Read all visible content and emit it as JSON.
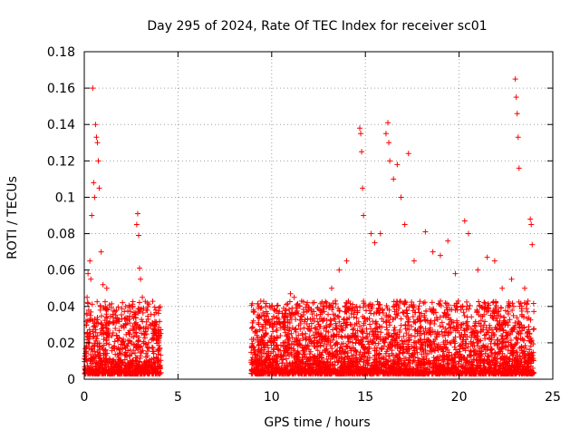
{
  "chart_data": {
    "type": "scatter",
    "title": "Day 295 of 2024, Rate Of TEC Index for receiver sc01",
    "xlabel": "GPS time / hours",
    "ylabel": "ROTI / TECUs",
    "xlim": [
      0,
      25
    ],
    "ylim": [
      0,
      0.18
    ],
    "x_ticks": [
      0,
      5,
      10,
      15,
      20,
      25
    ],
    "y_ticks": [
      0,
      0.02,
      0.04,
      0.06,
      0.08,
      0.1,
      0.12,
      0.14,
      0.16,
      0.18
    ],
    "x_tick_labels": [
      "0",
      "5",
      "10",
      "15",
      "20",
      "25"
    ],
    "y_tick_labels": [
      "0",
      "0.02",
      "0.04",
      "0.06",
      "0.08",
      "0.1",
      "0.12",
      "0.14",
      "0.16",
      "0.18"
    ],
    "grid": true,
    "marker": "+",
    "series_color": "#ff0000",
    "observed_segments": [
      [
        0,
        4.1
      ],
      [
        8.9,
        24
      ]
    ],
    "series": [
      {
        "x": [
          0.45,
          0.6,
          0.65,
          0.7,
          0.75,
          0.8,
          0.5,
          0.55,
          0.4,
          0.9,
          0.3,
          0.2,
          1.0,
          1.2,
          0.35,
          0.15,
          2.85,
          2.8,
          2.9,
          2.95,
          3.0,
          3.1,
          3.3,
          3.5,
          3.8,
          4.0,
          9.4,
          9.6,
          10.4,
          11.0,
          11.2,
          12.4,
          13.2,
          13.6,
          14.0,
          14.7,
          14.75,
          14.8,
          14.85,
          14.9,
          15.3,
          15.5,
          15.8,
          16.1,
          16.2,
          16.25,
          16.3,
          16.5,
          16.7,
          16.9,
          17.1,
          17.3,
          17.6,
          18.2,
          18.6,
          19.0,
          19.4,
          19.8,
          20.3,
          20.5,
          21.0,
          21.5,
          21.9,
          22.3,
          22.8,
          23.0,
          23.05,
          23.1,
          23.15,
          23.2,
          23.5,
          23.8,
          23.85,
          23.9
        ],
        "y": [
          0.16,
          0.14,
          0.133,
          0.13,
          0.12,
          0.105,
          0.108,
          0.1,
          0.09,
          0.07,
          0.065,
          0.058,
          0.052,
          0.05,
          0.055,
          0.045,
          0.091,
          0.085,
          0.079,
          0.061,
          0.055,
          0.045,
          0.038,
          0.03,
          0.025,
          0.024,
          0.039,
          0.035,
          0.033,
          0.047,
          0.045,
          0.035,
          0.05,
          0.06,
          0.065,
          0.138,
          0.135,
          0.125,
          0.105,
          0.09,
          0.08,
          0.075,
          0.08,
          0.135,
          0.141,
          0.13,
          0.12,
          0.11,
          0.118,
          0.1,
          0.085,
          0.124,
          0.065,
          0.081,
          0.07,
          0.068,
          0.076,
          0.058,
          0.087,
          0.08,
          0.06,
          0.067,
          0.065,
          0.05,
          0.055,
          0.165,
          0.155,
          0.146,
          0.133,
          0.116,
          0.05,
          0.088,
          0.085,
          0.074
        ]
      }
    ]
  }
}
